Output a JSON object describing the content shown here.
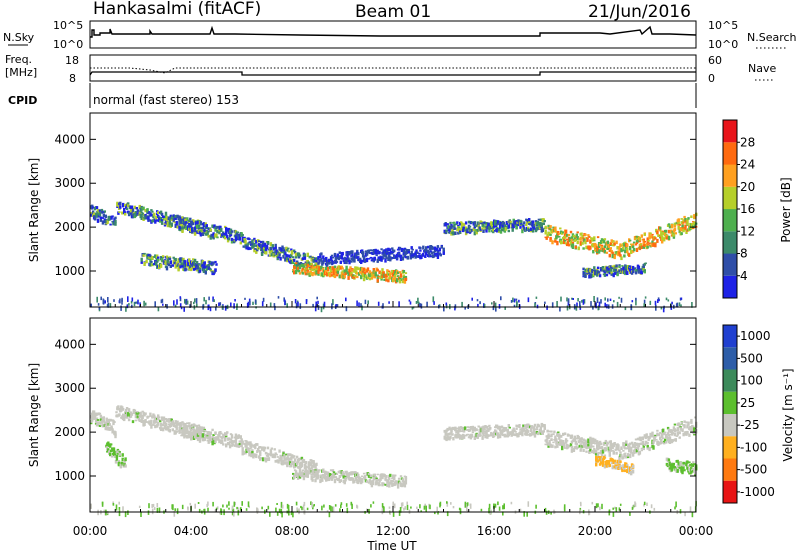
{
  "header": {
    "station": "Hankasalmi (fitACF)",
    "beam": "Beam 01",
    "date": "21/Jun/2016"
  },
  "strips": {
    "nsky": {
      "label": "N.Sky",
      "top_tick": "10^5",
      "bottom_tick": "10^0",
      "right_top_tick": "10^5",
      "right_bottom_tick": "10^0",
      "right_label": "N.Search"
    },
    "freq": {
      "label_line1": "Freq.",
      "label_line2": "[MHz]",
      "top_tick": "18",
      "bottom_tick": "8",
      "right_top_tick": "60",
      "right_bottom_tick": "0",
      "right_label": "Nave"
    },
    "cpid": {
      "label": "CPID",
      "text": "normal (fast stereo) 153"
    }
  },
  "colors": {
    "power_scale": [
      "#1e22e6",
      "#2f4ea8",
      "#3c8a6a",
      "#4fb04f",
      "#b6cf2a",
      "#ffa020",
      "#ff6a10",
      "#e8141a"
    ],
    "velocity_scale": [
      "#2040d0",
      "#2d5da8",
      "#3c8a5a",
      "#5cbf2e",
      "#c8c8c0",
      "#ffb020",
      "#ff7a10",
      "#e81414"
    ]
  },
  "chart_data": [
    {
      "type": "heatmap",
      "name": "power-panel",
      "ylabel": "Slant Range [km]",
      "xlim": [
        0,
        24
      ],
      "ylim": [
        180,
        4600
      ],
      "yticks": [
        1000,
        2000,
        3000,
        4000
      ],
      "colorbar": {
        "label": "Power [dB]",
        "ticks": [
          "4",
          "8",
          "12",
          "16",
          "20",
          "24",
          "28"
        ]
      },
      "echo_bands": [
        {
          "t_start": 0.0,
          "t_end": 1.0,
          "r_start": 2400,
          "r_end": 2100,
          "width": 300,
          "level": "medium"
        },
        {
          "t_start": 1.0,
          "t_end": 4.5,
          "r_start": 2500,
          "r_end": 2000,
          "width": 280,
          "level": "medium"
        },
        {
          "t_start": 3.5,
          "t_end": 6.0,
          "r_start": 2100,
          "r_end": 1800,
          "width": 300,
          "level": "medium"
        },
        {
          "t_start": 2.0,
          "t_end": 5.0,
          "r_start": 1300,
          "r_end": 1100,
          "width": 250,
          "level": "medium"
        },
        {
          "t_start": 6.0,
          "t_end": 9.0,
          "r_start": 1700,
          "r_end": 1200,
          "width": 300,
          "level": "medium"
        },
        {
          "t_start": 8.0,
          "t_end": 12.5,
          "r_start": 1100,
          "r_end": 900,
          "width": 250,
          "level": "strong"
        },
        {
          "t_start": 9.0,
          "t_end": 14.0,
          "r_start": 1300,
          "r_end": 1500,
          "width": 250,
          "level": "weak"
        },
        {
          "t_start": 14.0,
          "t_end": 18.0,
          "r_start": 2000,
          "r_end": 2100,
          "width": 250,
          "level": "medium"
        },
        {
          "t_start": 18.0,
          "t_end": 21.0,
          "r_start": 1900,
          "r_end": 1500,
          "width": 350,
          "level": "strong"
        },
        {
          "t_start": 21.0,
          "t_end": 24.0,
          "r_start": 1500,
          "r_end": 2200,
          "width": 350,
          "level": "strong"
        },
        {
          "t_start": 19.5,
          "t_end": 22.0,
          "r_start": 1000,
          "r_end": 1100,
          "width": 200,
          "level": "medium"
        }
      ]
    },
    {
      "type": "heatmap",
      "name": "velocity-panel",
      "ylabel": "Slant Range [km]",
      "xlabel": "Time UT",
      "xlim": [
        0,
        24
      ],
      "ylim": [
        180,
        4600
      ],
      "yticks": [
        1000,
        2000,
        3000,
        4000
      ],
      "xticks": [
        "00:00",
        "04:00",
        "08:00",
        "12:00",
        "16:00",
        "20:00",
        "00:00"
      ],
      "colorbar": {
        "label": "Velocity [m s⁻¹]",
        "ticks": [
          "1000",
          "500",
          "100",
          "25",
          "-25",
          "-100",
          "-500",
          "-1000"
        ]
      },
      "echo_bands": [
        {
          "t_start": 0.0,
          "t_end": 1.0,
          "r_start": 2400,
          "r_end": 2100,
          "width": 300,
          "level": "slow"
        },
        {
          "t_start": 1.0,
          "t_end": 4.5,
          "r_start": 2500,
          "r_end": 2000,
          "width": 280,
          "level": "slow"
        },
        {
          "t_start": 3.5,
          "t_end": 6.0,
          "r_start": 2100,
          "r_end": 1800,
          "width": 300,
          "level": "slow"
        },
        {
          "t_start": 6.0,
          "t_end": 9.0,
          "r_start": 1700,
          "r_end": 1200,
          "width": 300,
          "level": "slow"
        },
        {
          "t_start": 8.0,
          "t_end": 12.5,
          "r_start": 1100,
          "r_end": 900,
          "width": 250,
          "level": "slow"
        },
        {
          "t_start": 14.0,
          "t_end": 18.0,
          "r_start": 2000,
          "r_end": 2100,
          "width": 250,
          "level": "slow"
        },
        {
          "t_start": 18.0,
          "t_end": 21.0,
          "r_start": 1900,
          "r_end": 1600,
          "width": 350,
          "level": "slow"
        },
        {
          "t_start": 21.0,
          "t_end": 24.0,
          "r_start": 1600,
          "r_end": 2200,
          "width": 350,
          "level": "slow"
        },
        {
          "t_start": 0.6,
          "t_end": 1.4,
          "r_start": 1700,
          "r_end": 1300,
          "width": 300,
          "level": "toward"
        },
        {
          "t_start": 20.0,
          "t_end": 21.5,
          "r_start": 1400,
          "r_end": 1200,
          "width": 200,
          "level": "away"
        },
        {
          "t_start": 22.8,
          "t_end": 24.0,
          "r_start": 1300,
          "r_end": 1200,
          "width": 250,
          "level": "toward"
        }
      ]
    }
  ]
}
